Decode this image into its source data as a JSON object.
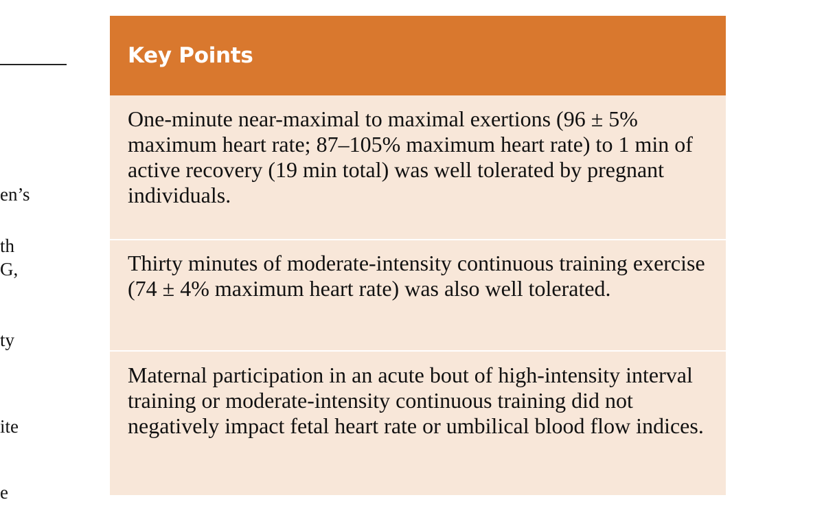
{
  "left_column": {
    "fragments": [
      "en’s",
      "th",
      "G,",
      "ty",
      "ite",
      "e"
    ]
  },
  "key_points": {
    "title": "Key Points",
    "items": [
      {
        "text": "One-minute near-maximal to maximal exertions (96 ± 5% maximum heart rate; 87–105% maximum heart rate) to 1 min of active recovery (19 min total) was well tolerated by pregnant individuals."
      },
      {
        "text": "Thirty minutes of moderate-intensity continuous training exercise (74 ± 4% maximum heart rate) was also well tolerated."
      },
      {
        "text": "Maternal participation in an acute bout of high-intensity interval training or moderate-intensity continuous training did not negatively impact fetal heart rate or umbilical blood flow indices."
      }
    ]
  },
  "colors": {
    "header_bg": "#d9782e",
    "body_bg": "#f8e7d9",
    "title_text": "#ffffff"
  }
}
